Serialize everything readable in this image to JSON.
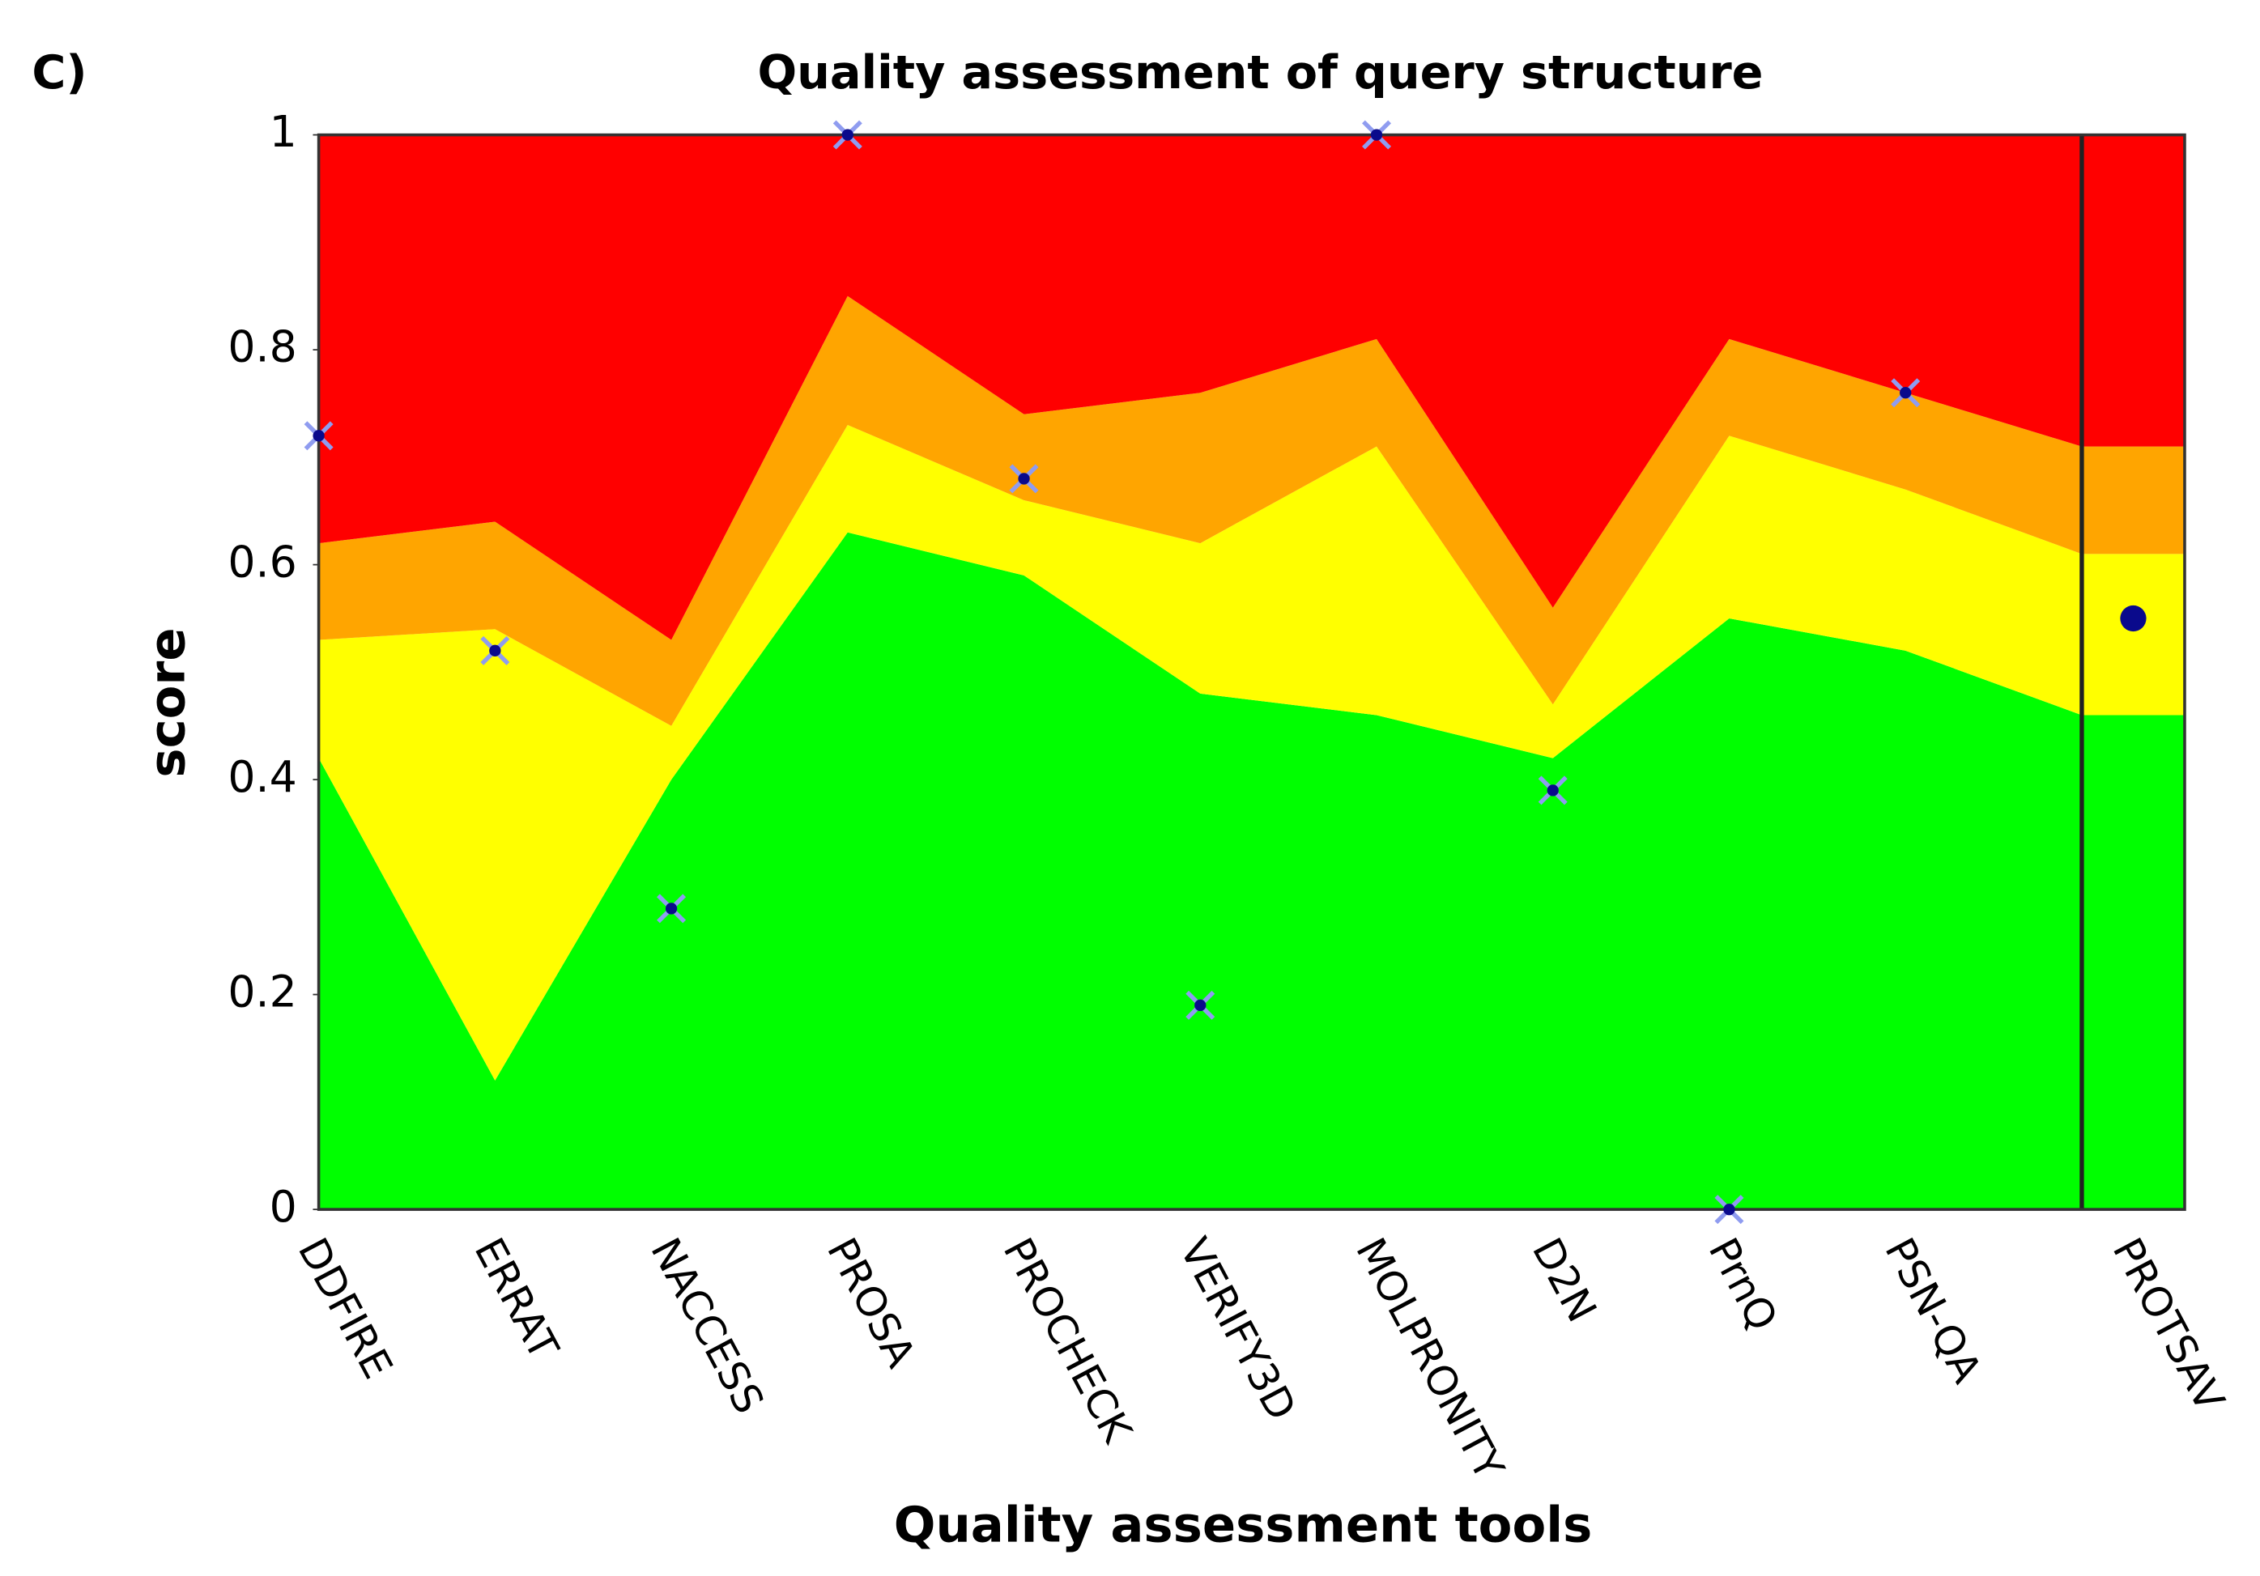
{
  "chart_data": {
    "type": "stacked-area",
    "panel_label": "C)",
    "title": "Quality assessment of query structure",
    "x_label": "Quality assessment tools",
    "y_label": "score",
    "categories": [
      "DDFIRE",
      "ERRAT",
      "NACCESS",
      "PROSA",
      "PROCHECK",
      "VERIFY3D",
      "MOLPRONITY",
      "D2N",
      "PrnQ",
      "PSN-QA",
      "PROTSAV"
    ],
    "bands": [
      {
        "color": "#00ff00",
        "values": [
          0.42,
          0.12,
          0.4,
          0.63,
          0.59,
          0.48,
          0.46,
          0.42,
          0.55,
          0.52,
          0.46
        ]
      },
      {
        "color": "#ffff00",
        "values": [
          0.11,
          0.42,
          0.05,
          0.1,
          0.07,
          0.14,
          0.25,
          0.05,
          0.17,
          0.15,
          0.15
        ]
      },
      {
        "color": "#ffa500",
        "values": [
          0.09,
          0.1,
          0.08,
          0.12,
          0.08,
          0.14,
          0.1,
          0.09,
          0.09,
          0.09,
          0.1
        ]
      },
      {
        "color": "#ff0000",
        "values": [
          0.38,
          0.36,
          0.47,
          0.15,
          0.26,
          0.24,
          0.19,
          0.44,
          0.19,
          0.24,
          0.29
        ]
      }
    ],
    "scores": {
      "color": "#0a0a8c",
      "values": [
        0.72,
        0.52,
        0.28,
        1,
        0.68,
        0.19,
        1,
        0.39,
        0,
        0.76,
        0.55
      ]
    },
    "ylim": [
      0,
      1
    ],
    "yticks": [
      0,
      0.2,
      0.4,
      0.6,
      0.8,
      1
    ]
  }
}
